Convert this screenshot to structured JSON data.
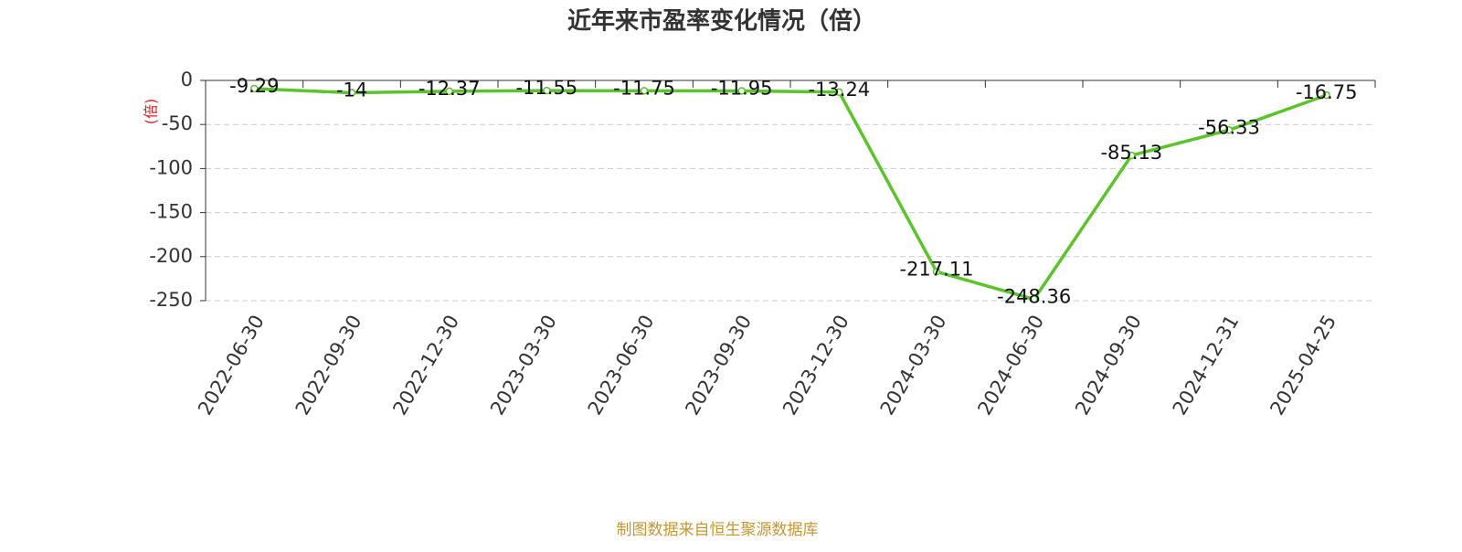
{
  "chart_data": {
    "type": "line",
    "title": "近年来市盈率变化情况（倍）",
    "y_label": "(倍)",
    "source": "制图数据来自恒生聚源数据库",
    "categories": [
      "2022-06-30",
      "2022-09-30",
      "2022-12-30",
      "2023-03-30",
      "2023-06-30",
      "2023-09-30",
      "2023-12-30",
      "2024-03-30",
      "2024-06-30",
      "2024-09-30",
      "2024-12-31",
      "2025-04-25"
    ],
    "series": [
      {
        "name": "市盈率",
        "color": "#5bc42b",
        "values": [
          -9.29,
          -14,
          -12.37,
          -11.55,
          -11.75,
          -11.95,
          -13.24,
          -217.11,
          -248.36,
          -85.13,
          -56.33,
          -16.75
        ]
      }
    ],
    "ylim": [
      -250,
      0
    ],
    "yticks": [
      0,
      -50,
      -100,
      -150,
      -200,
      -250
    ],
    "grid": true
  }
}
